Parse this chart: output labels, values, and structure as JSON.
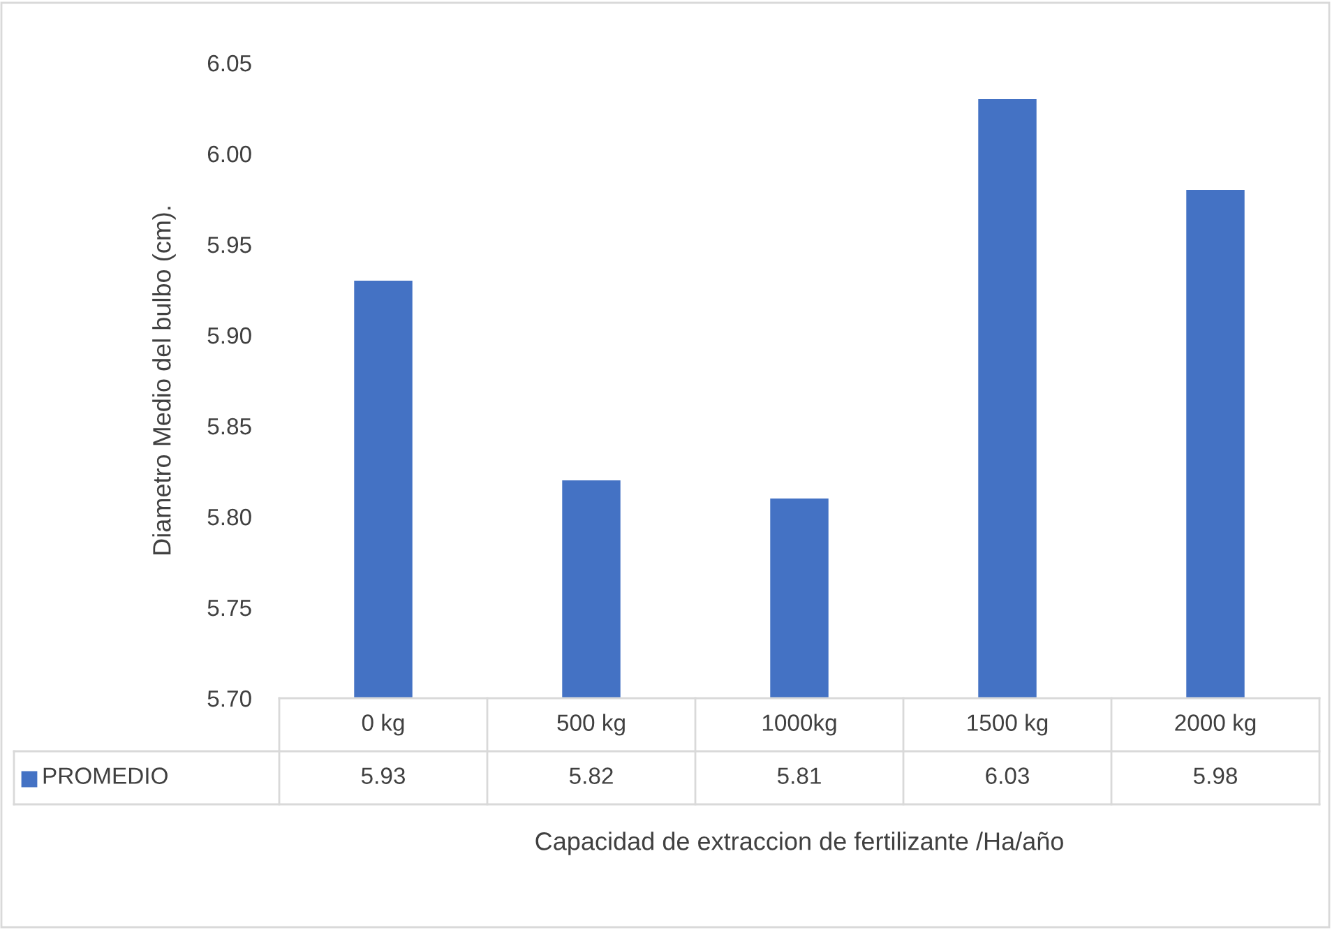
{
  "chart_data": {
    "type": "bar",
    "xlabel": "Capacidad de extraccion de fertilizante /Ha/año",
    "ylabel": "Diametro Medio del bulbo (cm).",
    "categories": [
      "0 kg",
      "500 kg",
      "1000kg",
      "1500 kg",
      "2000 kg"
    ],
    "series": [
      {
        "name": "PROMEDIO",
        "color": "#4472c4",
        "values": [
          5.93,
          5.82,
          5.81,
          6.03,
          5.98
        ]
      }
    ],
    "ylim": [
      5.7,
      6.05
    ],
    "yticks": [
      {
        "value": 5.7,
        "label": "5.70"
      },
      {
        "value": 5.75,
        "label": "5.75"
      },
      {
        "value": 5.8,
        "label": "5.80"
      },
      {
        "value": 5.85,
        "label": "5.85"
      },
      {
        "value": 5.9,
        "label": "5.90"
      },
      {
        "value": 5.95,
        "label": "5.95"
      },
      {
        "value": 6.0,
        "label": "6.00"
      },
      {
        "value": 6.05,
        "label": "6.05"
      }
    ],
    "grid": false,
    "data_labels": true
  }
}
